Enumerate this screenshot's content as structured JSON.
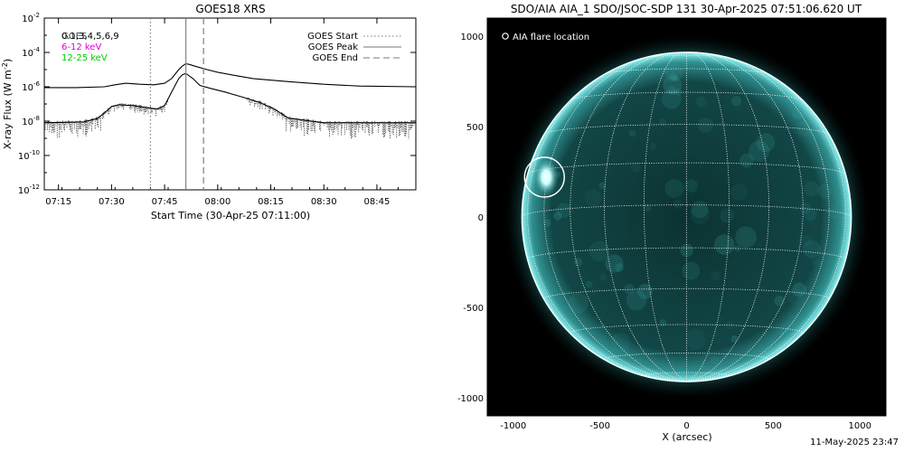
{
  "footer_timestamp": "11-May-2025 23:47",
  "chart_data": [
    {
      "type": "line",
      "title": "GOES18 XRS",
      "xlabel": "Start Time (30-Apr-25 07:11:00)",
      "ylabel": "X-ray Flux (W m^-2)",
      "ylabel_base": "X-ray Flux (W m",
      "ylabel_exp": "-2",
      "ylabel_close": ")",
      "y_scale": "log",
      "ylim": [
        1e-12,
        0.01
      ],
      "xlim": [
        "07:11",
        "08:56"
      ],
      "x_tick_labels": [
        "07:15",
        "07:30",
        "07:45",
        "08:00",
        "08:15",
        "08:30",
        "08:45"
      ],
      "y_ticks": [
        {
          "base": "10",
          "exp": "-2",
          "value": 0.01
        },
        {
          "base": "10",
          "exp": "-4",
          "value": 0.0001
        },
        {
          "base": "10",
          "exp": "-6",
          "value": 1e-06
        },
        {
          "base": "10",
          "exp": "-8",
          "value": 1e-08
        },
        {
          "base": "10",
          "exp": "-10",
          "value": 1e-10
        },
        {
          "base": "10",
          "exp": "-12",
          "value": 1e-12
        }
      ],
      "legend_placement": "top-left",
      "legend_left": [
        {
          "text": "0.1,3,4,5,6,9",
          "color": "#000000"
        },
        {
          "text": "6-12 keV",
          "color": "#dd00dd"
        },
        {
          "text": "12-25 keV",
          "color": "#00cc00"
        }
      ],
      "legend_overlay_text": "GOES",
      "legend_right": [
        {
          "text": "GOES Start",
          "style": "dotted"
        },
        {
          "text": "GOES Peak",
          "style": "solid"
        },
        {
          "text": "GOES End",
          "style": "dashed"
        }
      ],
      "event_lines": {
        "start": "07:41",
        "peak": "07:51",
        "end": "07:56"
      },
      "series": [
        {
          "id": "long_channel",
          "color": "#000000",
          "x": [
            "07:11",
            "07:20",
            "07:28",
            "07:31",
            "07:34",
            "07:38",
            "07:42",
            "07:45",
            "07:47",
            "07:49",
            "07:50",
            "07:51",
            "07:52",
            "07:54",
            "07:57",
            "08:00",
            "08:05",
            "08:10",
            "08:20",
            "08:30",
            "08:40",
            "08:56"
          ],
          "y": [
            9e-07,
            9e-07,
            1e-06,
            1.3e-06,
            1.6e-06,
            1.4e-06,
            1.3e-06,
            1.6e-06,
            3e-06,
            1e-05,
            1.6e-05,
            2.2e-05,
            2e-05,
            1.5e-05,
            1e-05,
            7e-06,
            4.5e-06,
            3e-06,
            2e-06,
            1.4e-06,
            1.1e-06,
            1e-06
          ]
        },
        {
          "id": "short_channel",
          "color": "#000000",
          "x": [
            "07:11",
            "07:22",
            "07:26",
            "07:28",
            "07:30",
            "07:32",
            "07:36",
            "07:40",
            "07:43",
            "07:45",
            "07:47",
            "07:49",
            "07:50",
            "07:51",
            "07:53",
            "07:55",
            "07:58",
            "08:02",
            "08:07",
            "08:12",
            "08:16",
            "08:20",
            "08:30",
            "08:45",
            "08:56"
          ],
          "y": [
            8e-09,
            9e-09,
            1.4e-08,
            3e-08,
            7e-08,
            9e-08,
            8e-08,
            6e-08,
            5e-08,
            8e-08,
            5e-07,
            3e-06,
            5e-06,
            6e-06,
            3e-06,
            1.2e-06,
            8e-07,
            5e-07,
            2.5e-07,
            1.2e-07,
            5e-08,
            1.5e-08,
            8e-09,
            8e-09,
            8e-09
          ]
        }
      ]
    },
    {
      "type": "image",
      "title": "SDO/AIA AIA_1 SDO/JSOC-SDP 131 30-Apr-2025 07:51:06.620 UT",
      "xlabel": "X (arcsec)",
      "ylabel": "",
      "xlim": [
        -1150,
        1150
      ],
      "ylim": [
        -1100,
        1100
      ],
      "x_tick_labels": [
        "-1000",
        "-500",
        "0",
        "500",
        "1000"
      ],
      "y_tick_labels": [
        "1000",
        "500",
        "0",
        "-500",
        "-1000"
      ],
      "legend_text": "AIA flare location",
      "legend_placement": "top-left",
      "disk_radius_arcsec": 950,
      "flare_location": {
        "x": -820,
        "y": 220
      },
      "colors": {
        "disk": "#0f3a3a",
        "limb": "#6ff0f0",
        "flare": "#ffffff",
        "grid": "#ffffff",
        "background": "#000000"
      }
    }
  ]
}
